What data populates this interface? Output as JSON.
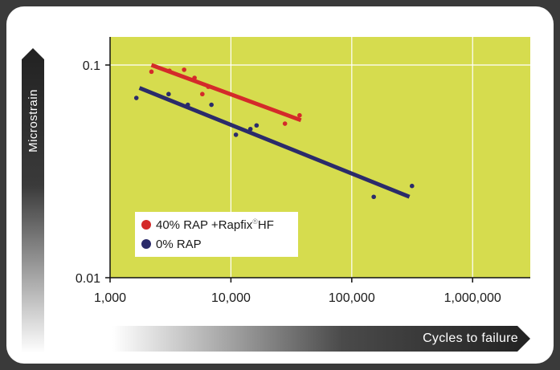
{
  "chart_data": {
    "type": "scatter",
    "x_scale": "log",
    "y_scale": "log",
    "xlim": [
      1000,
      3000000
    ],
    "ylim": [
      0.01,
      0.12
    ],
    "x_ticks": [
      {
        "value": 1000,
        "label": "1,000"
      },
      {
        "value": 10000,
        "label": "10,000"
      },
      {
        "value": 100000,
        "label": "100,000"
      },
      {
        "value": 1000000,
        "label": "1,000,000"
      }
    ],
    "y_ticks": [
      {
        "value": 0.1,
        "label": "0.1"
      },
      {
        "value": 0.01,
        "label": "0.01"
      }
    ],
    "xlabel": "Cycles to failure",
    "ylabel": "Microstrain",
    "grid": true,
    "legend_position": "bottom-left",
    "background_color": "#d6dc4e",
    "series": [
      {
        "name": "40% RAP +Rapfix HF",
        "legend_main": "40% RAP +Rapfix",
        "legend_sup": "®",
        "legend_tail": "HF",
        "color": "#d42a2a",
        "points": [
          {
            "x": 2200,
            "y": 0.093
          },
          {
            "x": 3100,
            "y": 0.094
          },
          {
            "x": 4100,
            "y": 0.095
          },
          {
            "x": 5000,
            "y": 0.087
          },
          {
            "x": 5800,
            "y": 0.073
          },
          {
            "x": 6500,
            "y": 0.079
          },
          {
            "x": 28000,
            "y": 0.053
          },
          {
            "x": 37000,
            "y": 0.058
          }
        ],
        "fit": [
          {
            "x": 2200,
            "y": 0.1
          },
          {
            "x": 38000,
            "y": 0.055
          }
        ]
      },
      {
        "name": "0% RAP",
        "legend_main": "0% RAP",
        "legend_sup": "",
        "legend_tail": "",
        "color": "#2b2b6a",
        "points": [
          {
            "x": 1650,
            "y": 0.07
          },
          {
            "x": 3050,
            "y": 0.073
          },
          {
            "x": 4400,
            "y": 0.065
          },
          {
            "x": 6900,
            "y": 0.065
          },
          {
            "x": 11000,
            "y": 0.047
          },
          {
            "x": 14500,
            "y": 0.05
          },
          {
            "x": 16300,
            "y": 0.052
          },
          {
            "x": 152000,
            "y": 0.024
          },
          {
            "x": 315000,
            "y": 0.027
          }
        ],
        "fit": [
          {
            "x": 1750,
            "y": 0.078
          },
          {
            "x": 300000,
            "y": 0.024
          }
        ]
      }
    ]
  }
}
